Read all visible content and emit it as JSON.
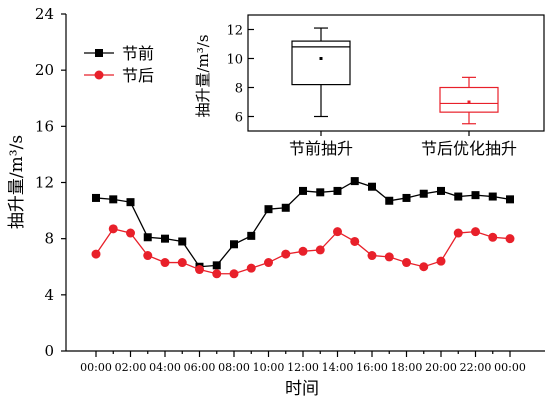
{
  "chart_data": [
    {
      "type": "line",
      "xlabel": "时间",
      "ylabel": "抽升量/m³/s",
      "ylim": [
        0,
        24
      ],
      "yticks": [
        "0",
        "4",
        "8",
        "12",
        "16",
        "20",
        "24"
      ],
      "categories": [
        "00:00",
        "01:00",
        "02:00",
        "03:00",
        "04:00",
        "05:00",
        "06:00",
        "07:00",
        "08:00",
        "09:00",
        "10:00",
        "11:00",
        "12:00",
        "13:00",
        "14:00",
        "15:00",
        "16:00",
        "17:00",
        "18:00",
        "19:00",
        "20:00",
        "21:00",
        "22:00",
        "23:00",
        "00:00"
      ],
      "xtick_labels": [
        "00:00",
        "02:00",
        "04:00",
        "06:00",
        "08:00",
        "10:00",
        "12:00",
        "14:00",
        "16:00",
        "18:00",
        "20:00",
        "22:00",
        "00:00"
      ],
      "legend_position": "upper-left",
      "grid": false,
      "series": [
        {
          "name": "节前",
          "color": "#000000",
          "marker": "square",
          "values": [
            10.9,
            10.8,
            10.6,
            8.1,
            8.0,
            7.8,
            6.0,
            6.1,
            7.6,
            8.2,
            10.1,
            10.2,
            11.4,
            11.3,
            11.4,
            12.1,
            11.7,
            10.7,
            10.9,
            11.2,
            11.4,
            11.0,
            11.1,
            11.0,
            10.8
          ]
        },
        {
          "name": "节后",
          "color": "#e8202a",
          "marker": "circle",
          "values": [
            6.9,
            8.7,
            8.4,
            6.8,
            6.3,
            6.3,
            5.8,
            5.5,
            5.5,
            5.9,
            6.3,
            6.9,
            7.1,
            7.2,
            8.5,
            7.8,
            6.8,
            6.7,
            6.3,
            6.0,
            6.4,
            8.4,
            8.5,
            8.1,
            8.0
          ]
        }
      ]
    },
    {
      "type": "box",
      "ylabel": "抽升量/m³/s",
      "ylim": [
        5,
        13
      ],
      "yticks": [
        "6",
        "8",
        "10",
        "12"
      ],
      "categories": [
        "节前抽升",
        "节后优化抽升"
      ],
      "boxes": [
        {
          "whisker_low": 6.0,
          "q1": 8.2,
          "median": 10.8,
          "q3": 11.2,
          "whisker_high": 12.1,
          "mean": 10.0,
          "color": "#000000"
        },
        {
          "whisker_low": 5.5,
          "q1": 6.3,
          "median": 6.9,
          "q3": 8.0,
          "whisker_high": 8.7,
          "mean": 7.0,
          "color": "#e8202a"
        }
      ]
    }
  ]
}
